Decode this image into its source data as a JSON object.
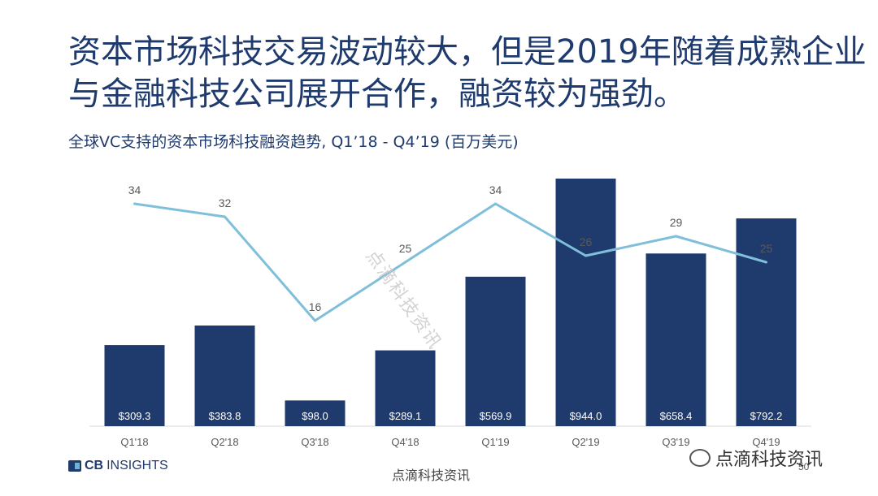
{
  "headline": "资本市场科技交易波动较大，但是2019年随着成熟企业与金融科技公司展开合作，融资较为强劲。",
  "subtitle": "全球VC支持的资本市场科技融资趋势, Q1’18 -  Q4’19 (百万美元)",
  "chart_data": {
    "type": "bar",
    "categories": [
      "Q1'18",
      "Q2'18",
      "Q3'18",
      "Q4'18",
      "Q1'19",
      "Q2'19",
      "Q3'19",
      "Q4'19"
    ],
    "series": [
      {
        "type": "bar",
        "values": [
          309.3,
          383.8,
          98.0,
          289.1,
          569.9,
          944.0,
          658.4,
          792.2
        ],
        "labels": [
          "$309.3",
          "$383.8",
          "$98.0",
          "$289.1",
          "$569.9",
          "$944.0",
          "$658.4",
          "$792.2"
        ],
        "color": "#1f3b6e"
      },
      {
        "type": "line",
        "values": [
          34,
          32,
          16,
          25,
          34,
          26,
          29,
          25
        ],
        "labels": [
          "34",
          "32",
          "16",
          "25",
          "34",
          "26",
          "29",
          "25"
        ],
        "color": "#7fbfd9"
      }
    ],
    "title": "全球VC支持的资本市场科技融资趋势, Q1’18 -  Q4’19 (百万美元)",
    "xlabel": "",
    "ylabel": "",
    "grid": false,
    "legend": "none"
  },
  "footer": {
    "logo_text_cb": "CB",
    "logo_text_rest": "INSIGHTS",
    "center_text": "点滴科技资讯",
    "page_number": "50",
    "wechat_text": "点滴科技资讯",
    "watermark_text": "点滴科技资讯"
  },
  "icons": [
    "cbinsights-logo-icon",
    "wechat-icon"
  ]
}
